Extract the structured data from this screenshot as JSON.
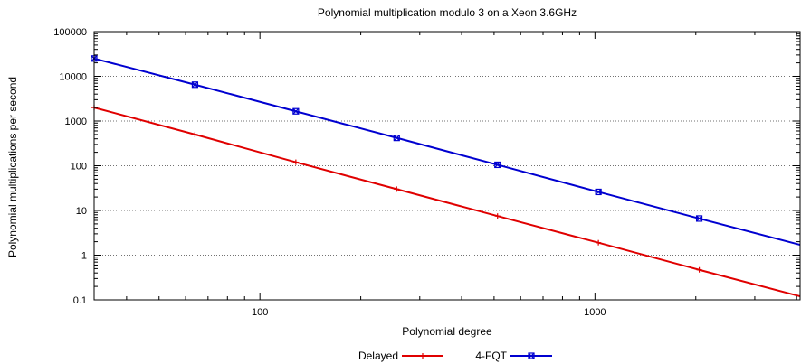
{
  "chart_data": {
    "type": "line",
    "title": "Polynomial multiplication modulo 3 on a Xeon 3.6GHz",
    "xlabel": "Polynomial degree",
    "ylabel": "Polynomial multiplications per second",
    "xscale": "log",
    "yscale": "log",
    "xlim": [
      32,
      4096
    ],
    "ylim": [
      0.1,
      100000
    ],
    "x_ticks": [
      100,
      1000
    ],
    "x_tick_labels": [
      "100",
      "1000"
    ],
    "y_ticks": [
      0.1,
      1,
      10,
      100,
      1000,
      10000,
      100000
    ],
    "y_tick_labels": [
      "0.1",
      "1",
      "10",
      "100",
      "1000",
      "10000",
      "100000"
    ],
    "grid": "y-major dotted",
    "legend_position": "bottom-center",
    "series": [
      {
        "name": "Delayed",
        "color": "#e00000",
        "marker": "plus",
        "x": [
          32,
          64,
          128,
          256,
          512,
          1024,
          2048,
          4096
        ],
        "y": [
          2000,
          500,
          120,
          30,
          7.5,
          1.9,
          0.47,
          0.12
        ],
        "marked": [
          true,
          true,
          true,
          true,
          true,
          true,
          true,
          false
        ]
      },
      {
        "name": "4-FQT",
        "color": "#0000d0",
        "marker": "x-box",
        "x": [
          32,
          64,
          128,
          256,
          512,
          1024,
          2048,
          4096
        ],
        "y": [
          25000,
          6500,
          1650,
          420,
          105,
          26,
          6.6,
          1.7
        ],
        "marked": [
          true,
          true,
          true,
          true,
          true,
          true,
          true,
          false
        ]
      }
    ]
  }
}
